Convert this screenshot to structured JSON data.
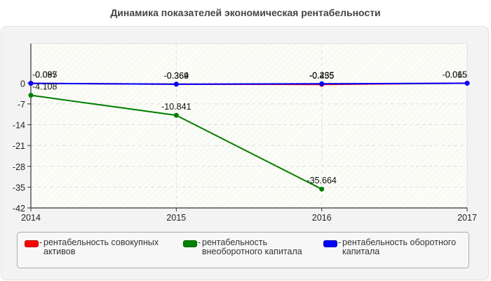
{
  "title": "Динамика показателей экономическая рентабельности",
  "chart_data": {
    "type": "line",
    "title": "Динамика показателей экономическая рентабельности",
    "xlabel": "",
    "ylabel": "",
    "x": [
      "2014",
      "2015",
      "2016",
      "2017"
    ],
    "yticks": [
      0,
      -7,
      -14,
      -21,
      -28,
      -35,
      -42
    ],
    "ylim": [
      -42,
      13.3
    ],
    "grid": true,
    "legend_position": "bottom",
    "series": [
      {
        "name": "рентабельность совокупных активов",
        "color": "#ff0000",
        "values": [
          -0.097,
          -0.364,
          -0.455,
          -0.015
        ],
        "labels": [
          "-0.097",
          "-0.364",
          "-0.455",
          "-0.015"
        ]
      },
      {
        "name": "рентабельность внеоборотного капитала",
        "color": "#008000",
        "values": [
          -4.108,
          -10.841,
          -35.664,
          null
        ],
        "labels": [
          "-4.108",
          "-10.841",
          "-35.664",
          ""
        ]
      },
      {
        "name": "рентабельность оборотного капитала",
        "color": "#0000ff",
        "values": [
          -0.085,
          -0.369,
          -0.235,
          -0.065
        ],
        "labels": [
          "-0.085",
          "-0.369",
          "-0.235",
          "-0.065"
        ]
      }
    ]
  },
  "legend": {
    "items": [
      {
        "dash": "-",
        "label": "рентабельность совокупных активов",
        "color": "#ff0000"
      },
      {
        "dash": "-",
        "label": "рентабельность внеоборотного капитала",
        "color": "#008000"
      },
      {
        "dash": "-",
        "label": "рентабельность оборотного капитала",
        "color": "#0000ff"
      }
    ]
  }
}
